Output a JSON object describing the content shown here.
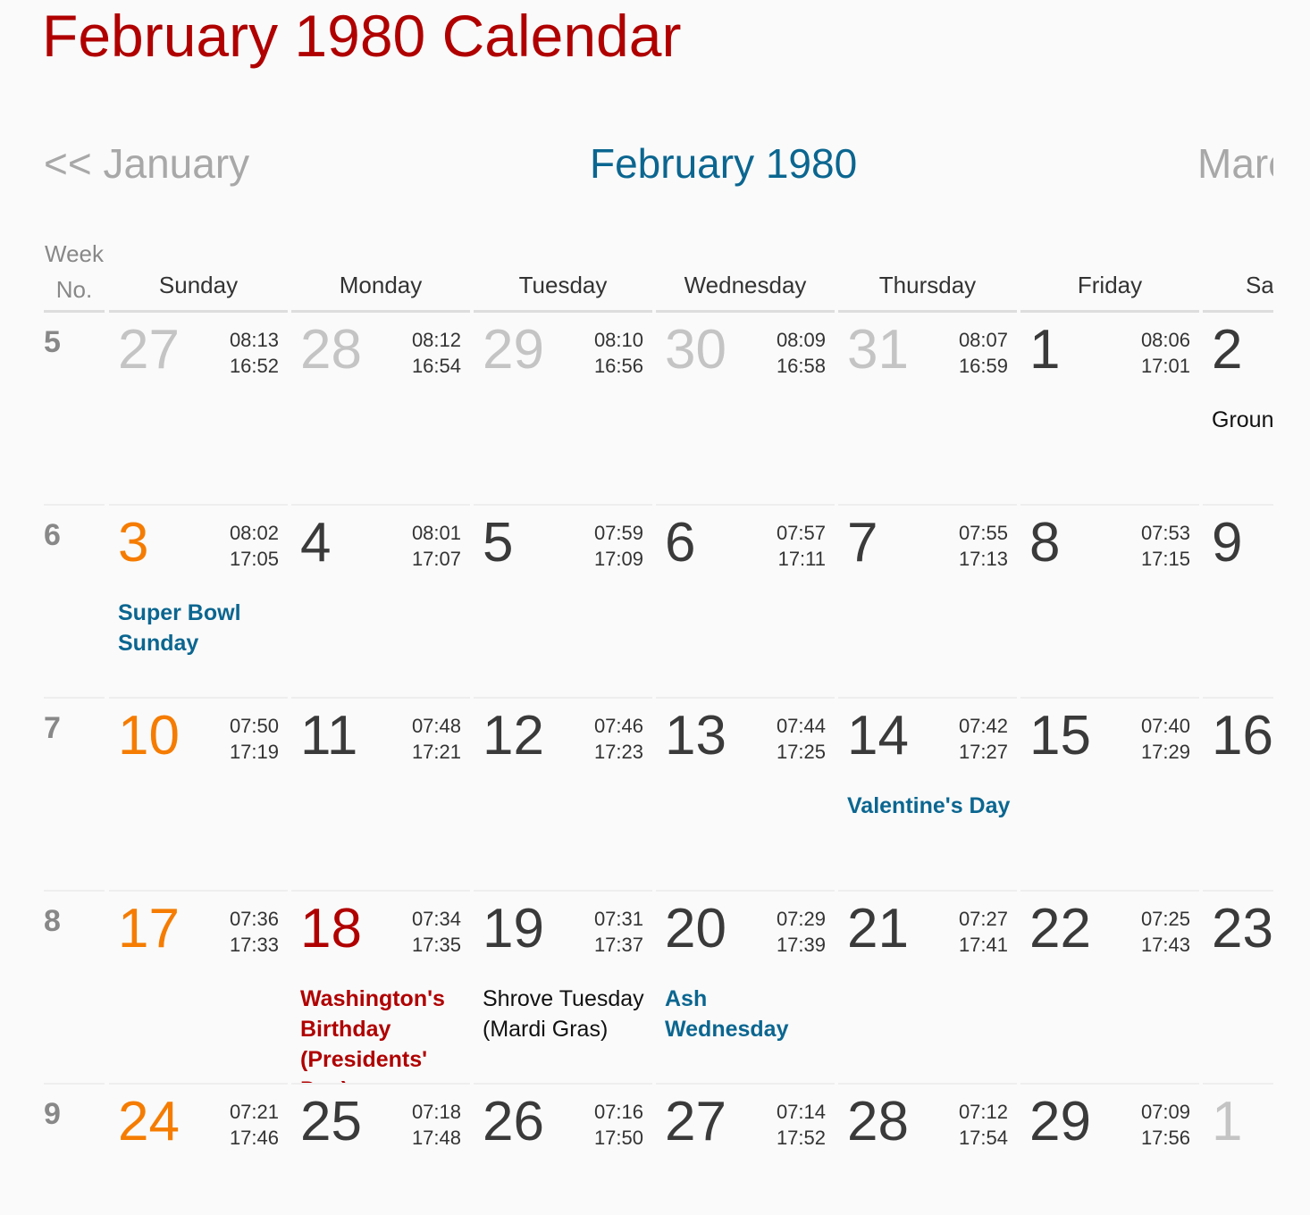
{
  "header": {
    "title": "February 1980 Calendar"
  },
  "nav": {
    "prev": "<< January",
    "current": "February 1980",
    "next": "March >>"
  },
  "columns": {
    "week": "Week No.",
    "days": [
      "Sunday",
      "Monday",
      "Tuesday",
      "Wednesday",
      "Thursday",
      "Friday",
      "Saturday"
    ]
  },
  "weeks": [
    {
      "week": 5,
      "days": [
        {
          "date": 27,
          "kind": "other",
          "sunrise": "08:13",
          "sunset": "16:52"
        },
        {
          "date": 28,
          "kind": "other",
          "sunrise": "08:12",
          "sunset": "16:54"
        },
        {
          "date": 29,
          "kind": "other",
          "sunrise": "08:10",
          "sunset": "16:56"
        },
        {
          "date": 30,
          "kind": "other",
          "sunrise": "08:09",
          "sunset": "16:58"
        },
        {
          "date": 31,
          "kind": "other",
          "sunrise": "08:07",
          "sunset": "16:59"
        },
        {
          "date": 1,
          "kind": "normal",
          "sunrise": "08:06",
          "sunset": "17:01"
        },
        {
          "date": 2,
          "kind": "normal",
          "event": "Groundhog Day",
          "event_kind": "plain"
        }
      ]
    },
    {
      "week": 6,
      "days": [
        {
          "date": 3,
          "kind": "sunday",
          "sunrise": "08:02",
          "sunset": "17:05",
          "event": "Super Bowl Sunday",
          "event_kind": "observance"
        },
        {
          "date": 4,
          "kind": "normal",
          "sunrise": "08:01",
          "sunset": "17:07"
        },
        {
          "date": 5,
          "kind": "normal",
          "sunrise": "07:59",
          "sunset": "17:09"
        },
        {
          "date": 6,
          "kind": "normal",
          "sunrise": "07:57",
          "sunset": "17:11"
        },
        {
          "date": 7,
          "kind": "normal",
          "sunrise": "07:55",
          "sunset": "17:13"
        },
        {
          "date": 8,
          "kind": "normal",
          "sunrise": "07:53",
          "sunset": "17:15"
        },
        {
          "date": 9,
          "kind": "normal"
        }
      ]
    },
    {
      "week": 7,
      "days": [
        {
          "date": 10,
          "kind": "sunday",
          "sunrise": "07:50",
          "sunset": "17:19"
        },
        {
          "date": 11,
          "kind": "normal",
          "sunrise": "07:48",
          "sunset": "17:21"
        },
        {
          "date": 12,
          "kind": "normal",
          "sunrise": "07:46",
          "sunset": "17:23"
        },
        {
          "date": 13,
          "kind": "normal",
          "sunrise": "07:44",
          "sunset": "17:25"
        },
        {
          "date": 14,
          "kind": "normal",
          "sunrise": "07:42",
          "sunset": "17:27",
          "event": "Valentine's Day",
          "event_kind": "observance"
        },
        {
          "date": 15,
          "kind": "normal",
          "sunrise": "07:40",
          "sunset": "17:29"
        },
        {
          "date": 16,
          "kind": "normal"
        }
      ]
    },
    {
      "week": 8,
      "days": [
        {
          "date": 17,
          "kind": "sunday",
          "sunrise": "07:36",
          "sunset": "17:33"
        },
        {
          "date": 18,
          "kind": "holiday",
          "sunrise": "07:34",
          "sunset": "17:35",
          "event": "Washington's Birthday (Presidents' Day)",
          "event_kind": "holiday"
        },
        {
          "date": 19,
          "kind": "normal",
          "sunrise": "07:31",
          "sunset": "17:37",
          "event": "Shrove Tuesday (Mardi Gras)",
          "event_kind": "plain"
        },
        {
          "date": 20,
          "kind": "normal",
          "sunrise": "07:29",
          "sunset": "17:39",
          "event": "Ash Wednesday",
          "event_kind": "observance"
        },
        {
          "date": 21,
          "kind": "normal",
          "sunrise": "07:27",
          "sunset": "17:41"
        },
        {
          "date": 22,
          "kind": "normal",
          "sunrise": "07:25",
          "sunset": "17:43"
        },
        {
          "date": 23,
          "kind": "normal"
        }
      ]
    },
    {
      "week": 9,
      "days": [
        {
          "date": 24,
          "kind": "sunday",
          "sunrise": "07:21",
          "sunset": "17:46"
        },
        {
          "date": 25,
          "kind": "normal",
          "sunrise": "07:18",
          "sunset": "17:48"
        },
        {
          "date": 26,
          "kind": "normal",
          "sunrise": "07:16",
          "sunset": "17:50"
        },
        {
          "date": 27,
          "kind": "normal",
          "sunrise": "07:14",
          "sunset": "17:52"
        },
        {
          "date": 28,
          "kind": "normal",
          "sunrise": "07:12",
          "sunset": "17:54"
        },
        {
          "date": 29,
          "kind": "normal",
          "sunrise": "07:09",
          "sunset": "17:56"
        },
        {
          "date": 1,
          "kind": "other"
        }
      ]
    }
  ]
}
